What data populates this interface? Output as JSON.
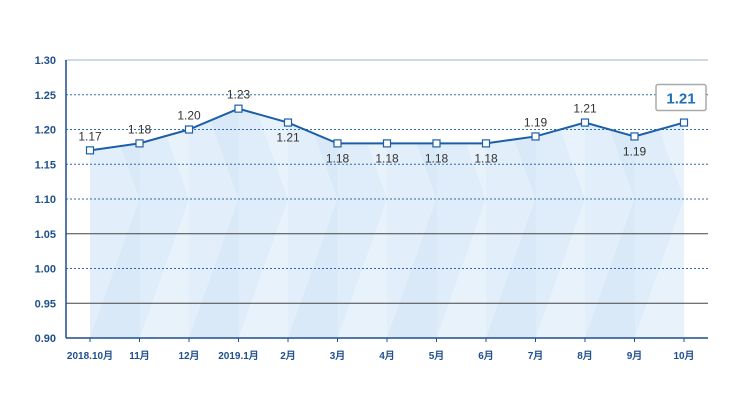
{
  "chart_data": {
    "type": "line",
    "categories": [
      "2018.10月",
      "11月",
      "12月",
      "2019.1月",
      "2月",
      "3月",
      "4月",
      "5月",
      "6月",
      "7月",
      "8月",
      "9月",
      "10月"
    ],
    "values": [
      1.17,
      1.18,
      1.2,
      1.23,
      1.21,
      1.18,
      1.18,
      1.18,
      1.18,
      1.19,
      1.21,
      1.19,
      1.21
    ],
    "data_labels": [
      "1.17",
      "1.18",
      "1.20",
      "1.23",
      "1.21",
      "1.18",
      "1.18",
      "1.18",
      "1.18",
      "1.19",
      "1.21",
      "1.19",
      "1.21"
    ],
    "highlight_label": "1.21",
    "ylim": [
      0.9,
      1.3
    ],
    "yticks": [
      "0.90",
      "0.95",
      "1.00",
      "1.05",
      "1.10",
      "1.15",
      "1.20",
      "1.25",
      "1.30"
    ],
    "solid_gridlines": [
      0.95,
      1.05
    ],
    "dotted_gridlines": [
      1.0,
      1.1,
      1.15,
      1.2,
      1.25
    ],
    "grid": true,
    "legend": "none",
    "title": "",
    "xlabel": "",
    "ylabel": "",
    "colors": {
      "line": "#1a5fa8",
      "marker_fill": "#ffffff",
      "axis": "#1f4f8c",
      "solid_grid": "#444444",
      "dotted_grid": "#2b6cb0",
      "area": "#cfe3f6",
      "highlight_border": "#aaaaaa",
      "highlight_text": "#1f6fb5"
    }
  }
}
